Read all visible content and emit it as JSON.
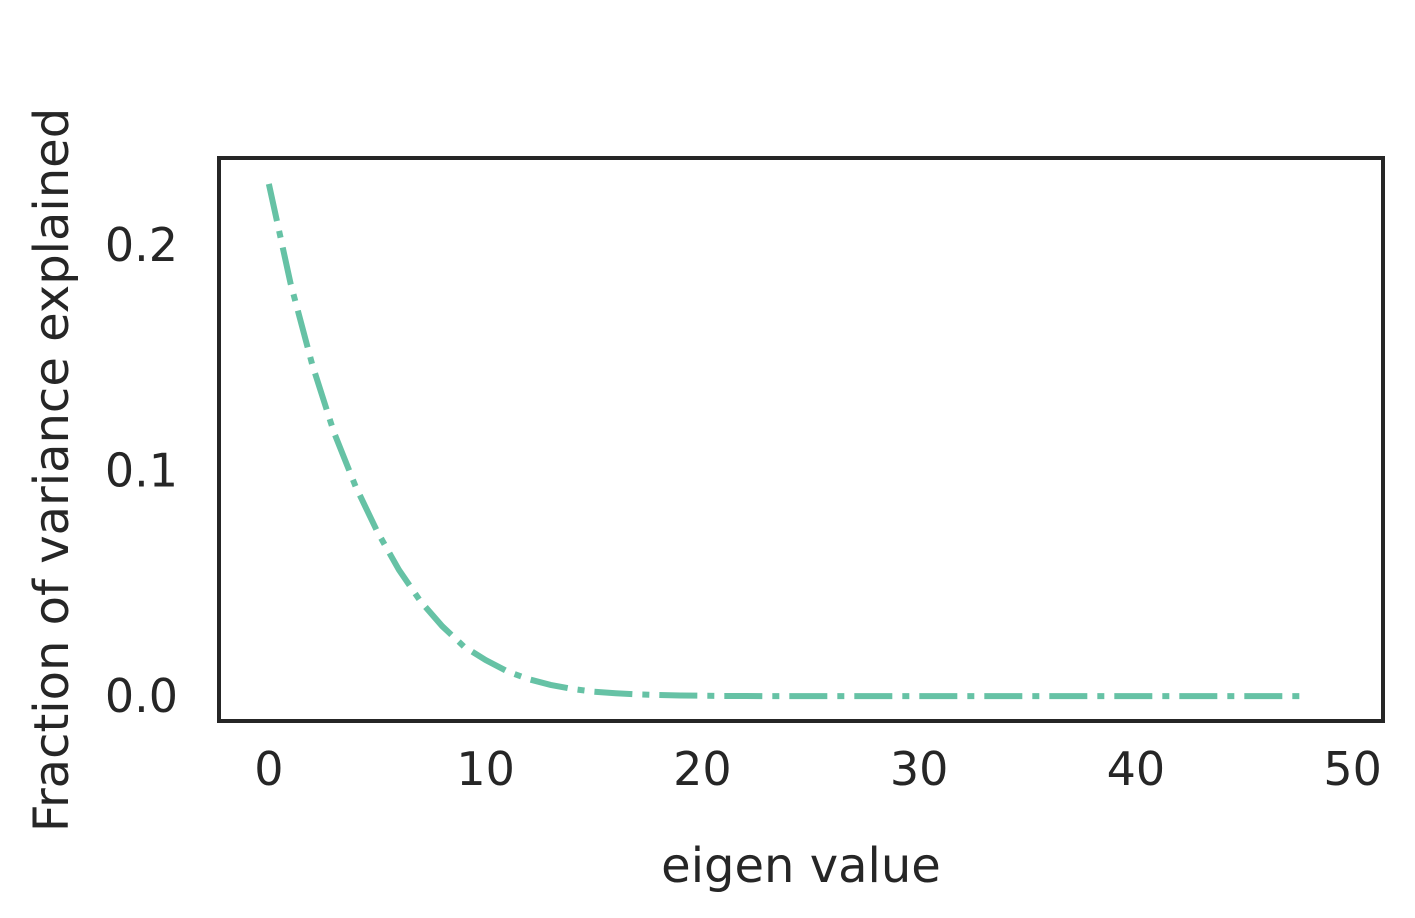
{
  "chart_data": {
    "type": "line",
    "title": "",
    "xlabel": "eigen value",
    "ylabel": "Fraction of variance explained",
    "xlim": [
      -2.3,
      51.4
    ],
    "ylim": [
      -0.011,
      0.2385
    ],
    "xticks": [
      0,
      10,
      20,
      30,
      40,
      50
    ],
    "xtick_labels": [
      "0",
      "10",
      "20",
      "30",
      "40",
      "50"
    ],
    "yticks": [
      0.0,
      0.1,
      0.2
    ],
    "ytick_labels": [
      "0.0",
      "0.1",
      "0.2"
    ],
    "grid": false,
    "line_style": "dashdot",
    "color": "#66c2a5",
    "series": [
      {
        "x": [
          0,
          1,
          2,
          3,
          4,
          5,
          6,
          7,
          8,
          9,
          10,
          11,
          12,
          13,
          14,
          15,
          16,
          17,
          18,
          19,
          20,
          21,
          22,
          23,
          24,
          25,
          26,
          27,
          28,
          29,
          30,
          31,
          32,
          33,
          34,
          35,
          36,
          37,
          38,
          39,
          40,
          41,
          42,
          43,
          44,
          45,
          46,
          47,
          48
        ],
        "values": [
          0.227,
          0.183,
          0.147,
          0.117,
          0.093,
          0.073,
          0.056,
          0.042,
          0.031,
          0.022,
          0.016,
          0.011,
          0.0075,
          0.005,
          0.0032,
          0.002,
          0.0013,
          0.0008,
          0.0005,
          0.0003,
          0.0002,
          0.0001,
          0.0001,
          0,
          0,
          0,
          0,
          0,
          0,
          0,
          0,
          0,
          0,
          0,
          0,
          0,
          0,
          0,
          0,
          0,
          0,
          0,
          0,
          0,
          0,
          0,
          0,
          0,
          0
        ]
      }
    ]
  }
}
